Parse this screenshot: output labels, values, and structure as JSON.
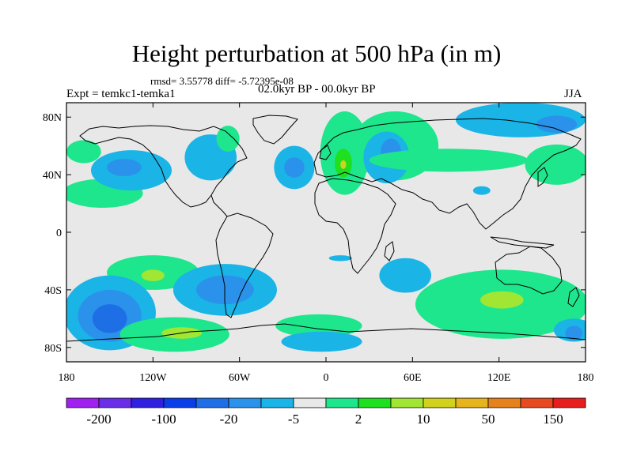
{
  "plot": {
    "title": "Height perturbation at 500 hPa (in m)",
    "stats_line": "rmsd= 3.55778  diff= -5.72395e-08",
    "left_label": "Expt = temkc1-temka1",
    "center_label": "02.0kyr BP - 00.0kyr BP",
    "right_label": "JJA",
    "projection": "cylindrical equidistant",
    "lon_range": [
      -180,
      180
    ],
    "lat_range": [
      -90,
      90
    ],
    "y_ticks": [
      "80N",
      "40N",
      "0",
      "40S",
      "80S"
    ],
    "x_ticks": [
      "180",
      "120W",
      "60W",
      "0",
      "60E",
      "120E",
      "180"
    ]
  },
  "colorbar": {
    "labels": [
      "-200",
      "-100",
      "-20",
      "-5",
      "2",
      "10",
      "50",
      "150"
    ],
    "colors": [
      "#a020f0",
      "#6a2ee8",
      "#3020e0",
      "#0a3ee8",
      "#1e6ee6",
      "#2a92ea",
      "#1ab4e6",
      "#e8e8e8",
      "#1ee68c",
      "#1ee01e",
      "#a0e632",
      "#d2d21e",
      "#e6b41e",
      "#e6821e",
      "#e64a1e",
      "#e61e1e"
    ]
  },
  "anomalies": [
    {
      "lon": -155,
      "lat": 27,
      "rx": 28,
      "ry": 10,
      "color": "#1ee68c"
    },
    {
      "lon": -168,
      "lat": 56,
      "rx": 12,
      "ry": 8,
      "color": "#1ee68c"
    },
    {
      "lon": -135,
      "lat": 43,
      "rx": 28,
      "ry": 14,
      "color": "#1ab4e6"
    },
    {
      "lon": -140,
      "lat": 45,
      "rx": 12,
      "ry": 6,
      "color": "#2a92ea"
    },
    {
      "lon": -80,
      "lat": 52,
      "rx": 18,
      "ry": 16,
      "color": "#1ab4e6"
    },
    {
      "lon": -68,
      "lat": 65,
      "rx": 8,
      "ry": 9,
      "color": "#1ee68c"
    },
    {
      "lon": -22,
      "lat": 45,
      "rx": 14,
      "ry": 15,
      "color": "#1ab4e6"
    },
    {
      "lon": -22,
      "lat": 45,
      "rx": 7,
      "ry": 7,
      "color": "#2a92ea"
    },
    {
      "lon": 13,
      "lat": 55,
      "rx": 17,
      "ry": 29,
      "color": "#1ee68c"
    },
    {
      "lon": 12,
      "lat": 48,
      "rx": 6,
      "ry": 10,
      "color": "#1ee01e"
    },
    {
      "lon": 12,
      "lat": 47,
      "rx": 2,
      "ry": 3,
      "color": "#d2d21e"
    },
    {
      "lon": 48,
      "lat": 60,
      "rx": 30,
      "ry": 24,
      "color": "#1ee68c"
    },
    {
      "lon": 42,
      "lat": 52,
      "rx": 16,
      "ry": 18,
      "color": "#1ab4e6"
    },
    {
      "lon": 45,
      "lat": 56,
      "rx": 7,
      "ry": 9,
      "color": "#2a92ea"
    },
    {
      "lon": 85,
      "lat": 50,
      "rx": 55,
      "ry": 8,
      "color": "#1ee68c"
    },
    {
      "lon": 135,
      "lat": 78,
      "rx": 45,
      "ry": 12,
      "color": "#1ab4e6"
    },
    {
      "lon": 160,
      "lat": 75,
      "rx": 14,
      "ry": 6,
      "color": "#2a92ea"
    },
    {
      "lon": 160,
      "lat": 47,
      "rx": 22,
      "ry": 14,
      "color": "#1ee68c"
    },
    {
      "lon": 108,
      "lat": 29,
      "rx": 6,
      "ry": 3,
      "color": "#1ab4e6"
    },
    {
      "lon": -120,
      "lat": -28,
      "rx": 32,
      "ry": 12,
      "color": "#1ee68c"
    },
    {
      "lon": -120,
      "lat": -30,
      "rx": 8,
      "ry": 4,
      "color": "#a0e632"
    },
    {
      "lon": -150,
      "lat": -56,
      "rx": 32,
      "ry": 26,
      "color": "#1ab4e6"
    },
    {
      "lon": -150,
      "lat": -58,
      "rx": 22,
      "ry": 18,
      "color": "#2a92ea"
    },
    {
      "lon": -150,
      "lat": -60,
      "rx": 12,
      "ry": 10,
      "color": "#1e6ee6"
    },
    {
      "lon": -105,
      "lat": -71,
      "rx": 38,
      "ry": 12,
      "color": "#1ee68c"
    },
    {
      "lon": -100,
      "lat": -70,
      "rx": 14,
      "ry": 4,
      "color": "#a0e632"
    },
    {
      "lon": -70,
      "lat": -40,
      "rx": 36,
      "ry": 18,
      "color": "#1ab4e6"
    },
    {
      "lon": -70,
      "lat": -40,
      "rx": 20,
      "ry": 10,
      "color": "#2a92ea"
    },
    {
      "lon": -5,
      "lat": -65,
      "rx": 30,
      "ry": 8,
      "color": "#1ee68c"
    },
    {
      "lon": 55,
      "lat": -30,
      "rx": 18,
      "ry": 12,
      "color": "#1ab4e6"
    },
    {
      "lon": 10,
      "lat": -18,
      "rx": 8,
      "ry": 2,
      "color": "#1ab4e6"
    },
    {
      "lon": -3,
      "lat": -76,
      "rx": 28,
      "ry": 7,
      "color": "#1ab4e6"
    },
    {
      "lon": 122,
      "lat": -50,
      "rx": 60,
      "ry": 24,
      "color": "#1ee68c"
    },
    {
      "lon": 122,
      "lat": -47,
      "rx": 15,
      "ry": 6,
      "color": "#a0e632"
    },
    {
      "lon": 172,
      "lat": -68,
      "rx": 14,
      "ry": 8,
      "color": "#1ab4e6"
    },
    {
      "lon": 172,
      "lat": -70,
      "rx": 6,
      "ry": 5,
      "color": "#2a92ea"
    }
  ]
}
